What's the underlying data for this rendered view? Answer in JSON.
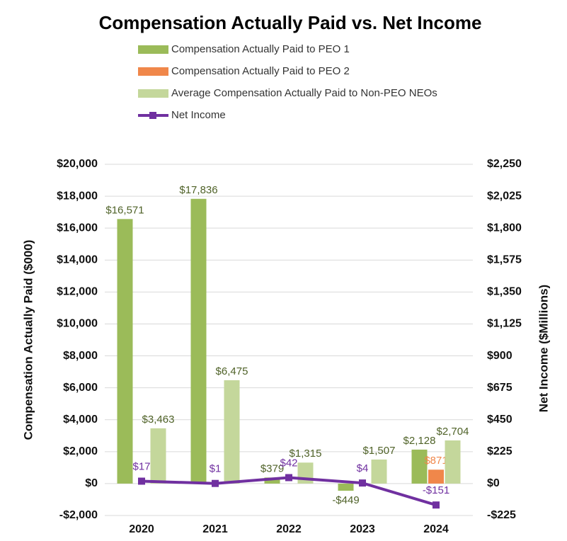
{
  "chart_data": {
    "type": "bar",
    "title": "Compensation Actually Paid vs. Net Income",
    "categories": [
      "2020",
      "2021",
      "2022",
      "2023",
      "2024"
    ],
    "ylabel": "Compensation Actually Paid ($000)",
    "y2label": "Net Income ($Millions)",
    "ylim": [
      -2000,
      20000
    ],
    "yticks": [
      {
        "value": -2000,
        "label": "-$2,000"
      },
      {
        "value": 0,
        "label": "$0"
      },
      {
        "value": 2000,
        "label": "$2,000"
      },
      {
        "value": 4000,
        "label": "$4,000"
      },
      {
        "value": 6000,
        "label": "$6,000"
      },
      {
        "value": 8000,
        "label": "$8,000"
      },
      {
        "value": 10000,
        "label": "$10,000"
      },
      {
        "value": 12000,
        "label": "$12,000"
      },
      {
        "value": 14000,
        "label": "$14,000"
      },
      {
        "value": 16000,
        "label": "$16,000"
      },
      {
        "value": 18000,
        "label": "$18,000"
      },
      {
        "value": 20000,
        "label": "$20,000"
      }
    ],
    "y2lim": [
      -225,
      2250
    ],
    "y2ticks": [
      {
        "value": -225,
        "label": "-$225"
      },
      {
        "value": 0,
        "label": "$0"
      },
      {
        "value": 225,
        "label": "$225"
      },
      {
        "value": 450,
        "label": "$450"
      },
      {
        "value": 675,
        "label": "$675"
      },
      {
        "value": 900,
        "label": "$900"
      },
      {
        "value": 1125,
        "label": "$1,125"
      },
      {
        "value": 1350,
        "label": "$1,350"
      },
      {
        "value": 1575,
        "label": "$1,575"
      },
      {
        "value": 1800,
        "label": "$1,800"
      },
      {
        "value": 2025,
        "label": "$2,025"
      },
      {
        "value": 2250,
        "label": "$2,250"
      }
    ],
    "grid": true,
    "series": [
      {
        "name": "Compensation Actually Paid to PEO 1",
        "type": "bar",
        "color": "#9bbb59",
        "label_color": "#4f6228",
        "values": [
          16571,
          17836,
          379,
          -449,
          2128
        ],
        "value_labels": [
          "$16,571",
          "$17,836",
          "$379",
          "-$449",
          "$2,128"
        ]
      },
      {
        "name": "Compensation Actually Paid to PEO 2",
        "type": "bar",
        "color": "#f0874a",
        "label_color": "#f0874a",
        "values": [
          null,
          null,
          null,
          null,
          871
        ],
        "value_labels": [
          null,
          null,
          null,
          null,
          "$871"
        ]
      },
      {
        "name": "Average Compensation Actually Paid to Non-PEO NEOs",
        "type": "bar",
        "color": "#c4d79b",
        "label_color": "#4f6228",
        "values": [
          3463,
          6475,
          1315,
          1507,
          2704
        ],
        "value_labels": [
          "$3,463",
          "$6,475",
          "$1,315",
          "$1,507",
          "$2,704"
        ]
      },
      {
        "name": "Net Income",
        "type": "line",
        "axis": "y2",
        "color": "#7030a0",
        "label_color": "#7030a0",
        "values": [
          17,
          1,
          42,
          4,
          -151
        ],
        "value_labels": [
          "$17",
          "$1",
          "$42",
          "$4",
          "-$151"
        ]
      }
    ]
  }
}
